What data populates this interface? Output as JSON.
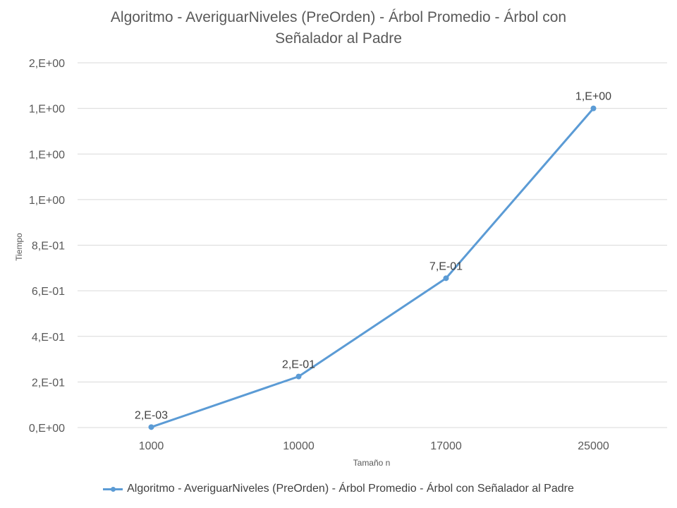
{
  "chart_data": {
    "type": "line",
    "title_line1": "Algoritmo - AveriguarNiveles (PreOrden) - Árbol Promedio - Árbol con",
    "title_line2": "Señalador al Padre",
    "xlabel": "Tamaño n",
    "ylabel": "Tiempo",
    "categories": [
      "1000",
      "10000",
      "17000",
      "25000"
    ],
    "series": [
      {
        "name": "Algoritmo - AveriguarNiveles (PreOrden) - Árbol Promedio - Árbol con Señalador al Padre",
        "values": [
          0.002,
          0.224,
          0.655,
          1.4
        ],
        "data_labels": [
          "2,E-03",
          "2,E-01",
          "7,E-01",
          "1,E+00"
        ],
        "color": "#5B9BD5"
      }
    ],
    "ylim": [
      0,
      1.6
    ],
    "yticks": [
      0,
      0.2,
      0.4,
      0.6,
      0.8,
      1.0,
      1.2,
      1.4,
      1.6
    ],
    "ytick_labels": [
      "0,E+00",
      "2,E-01",
      "4,E-01",
      "6,E-01",
      "8,E-01",
      "1,E+00",
      "1,E+00",
      "1,E+00",
      "2,E+00"
    ],
    "grid": true,
    "legend_position": "bottom",
    "colors": {
      "gridline": "#D9D9D9",
      "axis_text": "#595959"
    }
  }
}
